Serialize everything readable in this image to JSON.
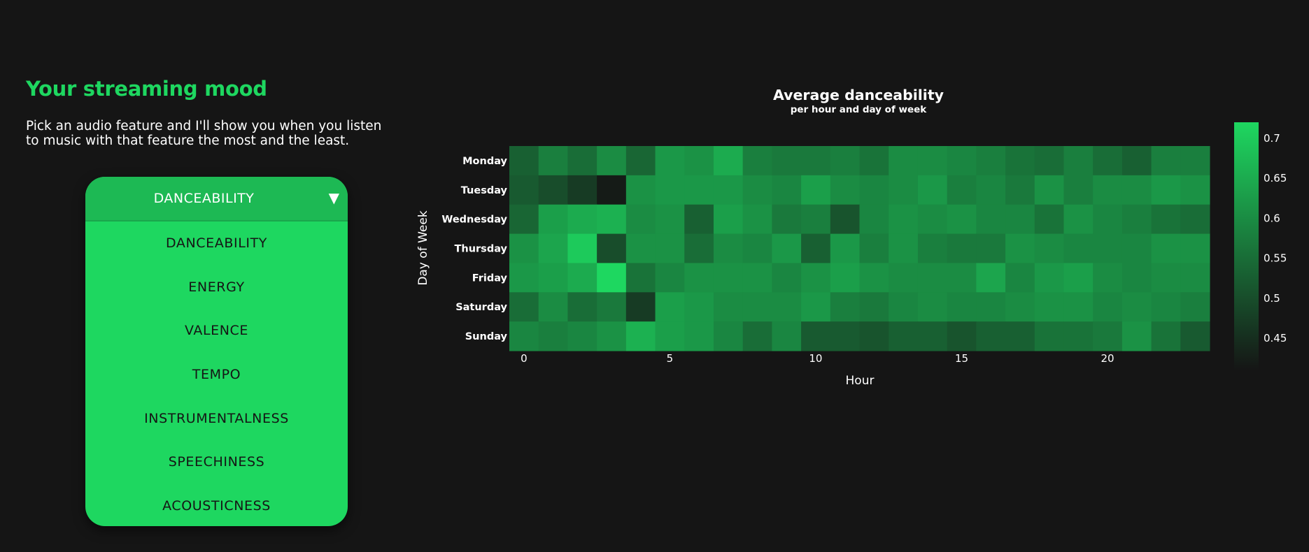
{
  "page": {
    "title": "Your streaming mood",
    "subtitle": "Pick an audio feature and I'll show you when you listen to music with that feature the most and the least."
  },
  "dropdown": {
    "selected": "DANCEABILITY",
    "arrow_icon": "triangle-down-icon",
    "options": [
      "DANCEABILITY",
      "ENERGY",
      "VALENCE",
      "TEMPO",
      "INSTRUMENTALNESS",
      "SPEECHINESS",
      "ACOUSTICNESS"
    ]
  },
  "chart_data": {
    "type": "heatmap",
    "title": "Average danceability",
    "subtitle": "per hour and day of week",
    "xlabel": "Hour",
    "ylabel": "Day of Week",
    "x": [
      0,
      1,
      2,
      3,
      4,
      5,
      6,
      7,
      8,
      9,
      10,
      11,
      12,
      13,
      14,
      15,
      16,
      17,
      18,
      19,
      20,
      21,
      22,
      23
    ],
    "x_ticks": [
      0,
      5,
      10,
      15,
      20
    ],
    "y": [
      "Monday",
      "Tuesday",
      "Wednesday",
      "Thursday",
      "Friday",
      "Saturday",
      "Sunday"
    ],
    "z": [
      [
        0.53,
        0.58,
        0.55,
        0.6,
        0.54,
        0.62,
        0.61,
        0.65,
        0.58,
        0.57,
        0.57,
        0.58,
        0.56,
        0.6,
        0.6,
        0.59,
        0.58,
        0.56,
        0.55,
        0.58,
        0.55,
        0.53,
        0.58,
        0.58
      ],
      [
        0.52,
        0.5,
        0.47,
        0.42,
        0.61,
        0.62,
        0.62,
        0.62,
        0.6,
        0.59,
        0.63,
        0.6,
        0.59,
        0.6,
        0.62,
        0.58,
        0.59,
        0.57,
        0.61,
        0.58,
        0.6,
        0.6,
        0.62,
        0.61
      ],
      [
        0.54,
        0.63,
        0.65,
        0.66,
        0.6,
        0.61,
        0.53,
        0.63,
        0.61,
        0.57,
        0.58,
        0.51,
        0.59,
        0.61,
        0.6,
        0.61,
        0.59,
        0.59,
        0.56,
        0.61,
        0.59,
        0.58,
        0.56,
        0.55
      ],
      [
        0.61,
        0.64,
        0.7,
        0.5,
        0.61,
        0.61,
        0.55,
        0.6,
        0.59,
        0.62,
        0.53,
        0.62,
        0.58,
        0.61,
        0.58,
        0.57,
        0.57,
        0.61,
        0.6,
        0.59,
        0.59,
        0.59,
        0.61,
        0.61
      ],
      [
        0.62,
        0.63,
        0.65,
        0.72,
        0.56,
        0.59,
        0.61,
        0.61,
        0.61,
        0.59,
        0.61,
        0.63,
        0.61,
        0.6,
        0.6,
        0.6,
        0.64,
        0.59,
        0.62,
        0.63,
        0.6,
        0.59,
        0.6,
        0.6
      ],
      [
        0.55,
        0.6,
        0.55,
        0.57,
        0.47,
        0.63,
        0.62,
        0.6,
        0.6,
        0.6,
        0.62,
        0.58,
        0.57,
        0.59,
        0.6,
        0.59,
        0.59,
        0.6,
        0.61,
        0.61,
        0.59,
        0.6,
        0.59,
        0.58
      ],
      [
        0.59,
        0.58,
        0.59,
        0.61,
        0.66,
        0.63,
        0.62,
        0.59,
        0.55,
        0.59,
        0.52,
        0.52,
        0.51,
        0.53,
        0.53,
        0.51,
        0.53,
        0.53,
        0.56,
        0.56,
        0.57,
        0.61,
        0.56,
        0.52
      ]
    ],
    "colorbar": {
      "min": 0.41,
      "max": 0.72,
      "ticks": [
        0.45,
        0.5,
        0.55,
        0.6,
        0.65,
        0.7
      ],
      "tick_labels": [
        "0.45",
        "0.5",
        "0.55",
        "0.6",
        "0.65",
        "0.7"
      ]
    },
    "colors": {
      "low": "#151515",
      "high": "#1ed760"
    },
    "legend": "colorbar-right",
    "grid": false
  }
}
